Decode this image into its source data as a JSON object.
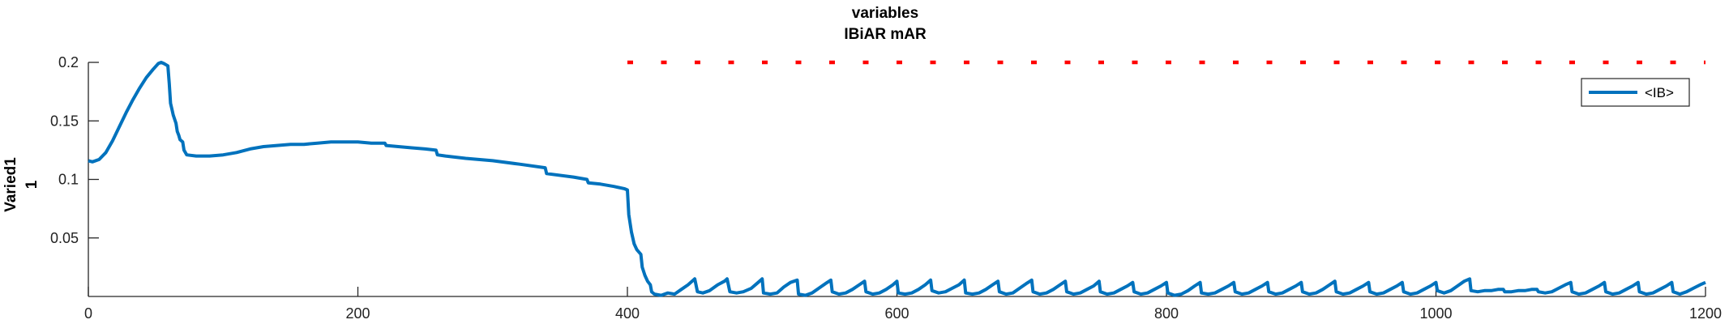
{
  "chart_data": {
    "type": "line",
    "title": [
      "variables",
      "IBiAR mAR"
    ],
    "xlabel": "",
    "ylabel": [
      "Varied1",
      "1"
    ],
    "xlim": [
      0,
      1200
    ],
    "ylim": [
      0,
      0.2
    ],
    "xticks": [
      0,
      200,
      400,
      600,
      800,
      1000,
      1200
    ],
    "xtick_labels": [
      "0",
      "200",
      "400",
      "600",
      "800",
      "1000",
      "1200"
    ],
    "yticks": [
      0.05,
      0.1,
      0.15,
      0.2
    ],
    "ytick_labels": [
      "0.05",
      "0.1",
      "0.15",
      "0.2"
    ],
    "grid": false,
    "legend": {
      "position": "top-right",
      "entries": [
        "<IB>"
      ]
    },
    "series": [
      {
        "name": "<IB>",
        "color": "#0072BD",
        "style": "solid",
        "points": [
          [
            0,
            0.116
          ],
          [
            3,
            0.115
          ],
          [
            8,
            0.117
          ],
          [
            13,
            0.123
          ],
          [
            18,
            0.133
          ],
          [
            23,
            0.145
          ],
          [
            28,
            0.157
          ],
          [
            33,
            0.168
          ],
          [
            38,
            0.178
          ],
          [
            43,
            0.187
          ],
          [
            48,
            0.194
          ],
          [
            52,
            0.199
          ],
          [
            54,
            0.2
          ],
          [
            56,
            0.199
          ],
          [
            59,
            0.197
          ],
          [
            60,
            0.182
          ],
          [
            61,
            0.165
          ],
          [
            62,
            0.16
          ],
          [
            63,
            0.155
          ],
          [
            65,
            0.148
          ],
          [
            66,
            0.141
          ],
          [
            67,
            0.138
          ],
          [
            68,
            0.134
          ],
          [
            70,
            0.132
          ],
          [
            71,
            0.125
          ],
          [
            73,
            0.121
          ],
          [
            80,
            0.12
          ],
          [
            90,
            0.12
          ],
          [
            100,
            0.121
          ],
          [
            110,
            0.123
          ],
          [
            120,
            0.126
          ],
          [
            130,
            0.128
          ],
          [
            140,
            0.129
          ],
          [
            150,
            0.13
          ],
          [
            160,
            0.13
          ],
          [
            170,
            0.131
          ],
          [
            180,
            0.132
          ],
          [
            190,
            0.132
          ],
          [
            200,
            0.132
          ],
          [
            210,
            0.131
          ],
          [
            220,
            0.131
          ],
          [
            221,
            0.129
          ],
          [
            230,
            0.128
          ],
          [
            240,
            0.127
          ],
          [
            250,
            0.126
          ],
          [
            258,
            0.125
          ],
          [
            259,
            0.121
          ],
          [
            265,
            0.12
          ],
          [
            280,
            0.118
          ],
          [
            300,
            0.116
          ],
          [
            320,
            0.113
          ],
          [
            339,
            0.11
          ],
          [
            340,
            0.105
          ],
          [
            360,
            0.102
          ],
          [
            370,
            0.1
          ],
          [
            371,
            0.097
          ],
          [
            380,
            0.096
          ],
          [
            390,
            0.094
          ],
          [
            398,
            0.092
          ],
          [
            400,
            0.091
          ],
          [
            401,
            0.07
          ],
          [
            403,
            0.055
          ],
          [
            405,
            0.045
          ],
          [
            407,
            0.04
          ],
          [
            410,
            0.036
          ],
          [
            411,
            0.025
          ],
          [
            413,
            0.018
          ],
          [
            415,
            0.013
          ],
          [
            417,
            0.01
          ],
          [
            418,
            0.004
          ],
          [
            420,
            0.002
          ],
          [
            425,
            0.001
          ],
          [
            430,
            0.003
          ],
          [
            435,
            0.002
          ],
          [
            440,
            0.006
          ],
          [
            445,
            0.01
          ],
          [
            450,
            0.015
          ],
          [
            452,
            0.004
          ],
          [
            456,
            0.003
          ],
          [
            461,
            0.005
          ],
          [
            467,
            0.01
          ],
          [
            472,
            0.013
          ],
          [
            474,
            0.015
          ],
          [
            476,
            0.004
          ],
          [
            481,
            0.003
          ],
          [
            486,
            0.004
          ],
          [
            492,
            0.007
          ],
          [
            497,
            0.012
          ],
          [
            500,
            0.015
          ],
          [
            501,
            0.003
          ],
          [
            506,
            0.002
          ],
          [
            511,
            0.003
          ],
          [
            516,
            0.008
          ],
          [
            521,
            0.012
          ],
          [
            526,
            0.014
          ],
          [
            527,
            0.002
          ],
          [
            532,
            0.001
          ],
          [
            537,
            0.003
          ],
          [
            542,
            0.007
          ],
          [
            547,
            0.011
          ],
          [
            551,
            0.014
          ],
          [
            552,
            0.004
          ],
          [
            557,
            0.002
          ],
          [
            562,
            0.003
          ],
          [
            567,
            0.006
          ],
          [
            572,
            0.01
          ],
          [
            576,
            0.013
          ],
          [
            577,
            0.004
          ],
          [
            582,
            0.002
          ],
          [
            587,
            0.003
          ],
          [
            592,
            0.006
          ],
          [
            597,
            0.01
          ],
          [
            600,
            0.013
          ],
          [
            601,
            0.003
          ],
          [
            606,
            0.002
          ],
          [
            611,
            0.003
          ],
          [
            616,
            0.006
          ],
          [
            621,
            0.01
          ],
          [
            625,
            0.014
          ],
          [
            626,
            0.005
          ],
          [
            631,
            0.003
          ],
          [
            636,
            0.004
          ],
          [
            641,
            0.007
          ],
          [
            646,
            0.01
          ],
          [
            650,
            0.014
          ],
          [
            651,
            0.003
          ],
          [
            656,
            0.002
          ],
          [
            661,
            0.003
          ],
          [
            666,
            0.006
          ],
          [
            671,
            0.01
          ],
          [
            675,
            0.013
          ],
          [
            676,
            0.004
          ],
          [
            681,
            0.002
          ],
          [
            686,
            0.003
          ],
          [
            691,
            0.007
          ],
          [
            696,
            0.011
          ],
          [
            700,
            0.014
          ],
          [
            701,
            0.004
          ],
          [
            706,
            0.002
          ],
          [
            711,
            0.003
          ],
          [
            716,
            0.006
          ],
          [
            721,
            0.01
          ],
          [
            725,
            0.013
          ],
          [
            726,
            0.004
          ],
          [
            731,
            0.002
          ],
          [
            736,
            0.003
          ],
          [
            741,
            0.006
          ],
          [
            746,
            0.009
          ],
          [
            750,
            0.013
          ],
          [
            751,
            0.004
          ],
          [
            756,
            0.002
          ],
          [
            761,
            0.003
          ],
          [
            766,
            0.006
          ],
          [
            771,
            0.009
          ],
          [
            775,
            0.012
          ],
          [
            776,
            0.004
          ],
          [
            781,
            0.002
          ],
          [
            786,
            0.003
          ],
          [
            791,
            0.006
          ],
          [
            796,
            0.009
          ],
          [
            800,
            0.012
          ],
          [
            801,
            0.003
          ],
          [
            806,
            0.001
          ],
          [
            811,
            0.002
          ],
          [
            816,
            0.005
          ],
          [
            821,
            0.009
          ],
          [
            825,
            0.012
          ],
          [
            826,
            0.003
          ],
          [
            831,
            0.002
          ],
          [
            836,
            0.003
          ],
          [
            841,
            0.006
          ],
          [
            846,
            0.009
          ],
          [
            850,
            0.012
          ],
          [
            851,
            0.004
          ],
          [
            856,
            0.002
          ],
          [
            861,
            0.003
          ],
          [
            866,
            0.006
          ],
          [
            871,
            0.009
          ],
          [
            875,
            0.012
          ],
          [
            876,
            0.004
          ],
          [
            881,
            0.002
          ],
          [
            886,
            0.003
          ],
          [
            891,
            0.006
          ],
          [
            896,
            0.009
          ],
          [
            900,
            0.012
          ],
          [
            901,
            0.004
          ],
          [
            906,
            0.002
          ],
          [
            911,
            0.003
          ],
          [
            916,
            0.006
          ],
          [
            921,
            0.01
          ],
          [
            925,
            0.013
          ],
          [
            926,
            0.004
          ],
          [
            931,
            0.002
          ],
          [
            936,
            0.003
          ],
          [
            941,
            0.006
          ],
          [
            946,
            0.009
          ],
          [
            950,
            0.012
          ],
          [
            951,
            0.004
          ],
          [
            956,
            0.002
          ],
          [
            961,
            0.003
          ],
          [
            966,
            0.006
          ],
          [
            971,
            0.009
          ],
          [
            975,
            0.012
          ],
          [
            976,
            0.004
          ],
          [
            981,
            0.002
          ],
          [
            986,
            0.003
          ],
          [
            991,
            0.006
          ],
          [
            996,
            0.009
          ],
          [
            1000,
            0.012
          ],
          [
            1001,
            0.005
          ],
          [
            1006,
            0.003
          ],
          [
            1011,
            0.005
          ],
          [
            1016,
            0.009
          ],
          [
            1021,
            0.013
          ],
          [
            1025,
            0.015
          ],
          [
            1026,
            0.005
          ],
          [
            1031,
            0.004
          ],
          [
            1036,
            0.005
          ],
          [
            1041,
            0.005
          ],
          [
            1046,
            0.006
          ],
          [
            1050,
            0.006
          ],
          [
            1051,
            0.004
          ],
          [
            1056,
            0.004
          ],
          [
            1061,
            0.005
          ],
          [
            1066,
            0.005
          ],
          [
            1071,
            0.006
          ],
          [
            1075,
            0.006
          ],
          [
            1076,
            0.004
          ],
          [
            1081,
            0.003
          ],
          [
            1086,
            0.004
          ],
          [
            1091,
            0.007
          ],
          [
            1096,
            0.01
          ],
          [
            1100,
            0.012
          ],
          [
            1101,
            0.004
          ],
          [
            1106,
            0.002
          ],
          [
            1111,
            0.003
          ],
          [
            1116,
            0.006
          ],
          [
            1121,
            0.009
          ],
          [
            1125,
            0.012
          ],
          [
            1126,
            0.004
          ],
          [
            1131,
            0.002
          ],
          [
            1136,
            0.003
          ],
          [
            1141,
            0.006
          ],
          [
            1146,
            0.009
          ],
          [
            1150,
            0.012
          ],
          [
            1151,
            0.004
          ],
          [
            1156,
            0.002
          ],
          [
            1161,
            0.003
          ],
          [
            1166,
            0.006
          ],
          [
            1171,
            0.009
          ],
          [
            1175,
            0.012
          ],
          [
            1176,
            0.004
          ],
          [
            1181,
            0.002
          ],
          [
            1186,
            0.004
          ],
          [
            1191,
            0.007
          ],
          [
            1196,
            0.01
          ],
          [
            1200,
            0.012
          ]
        ]
      },
      {
        "color": "#FF0000",
        "style": "dotted",
        "points": [
          [
            400,
            0.2
          ],
          [
            1200,
            0.2
          ]
        ]
      }
    ]
  }
}
